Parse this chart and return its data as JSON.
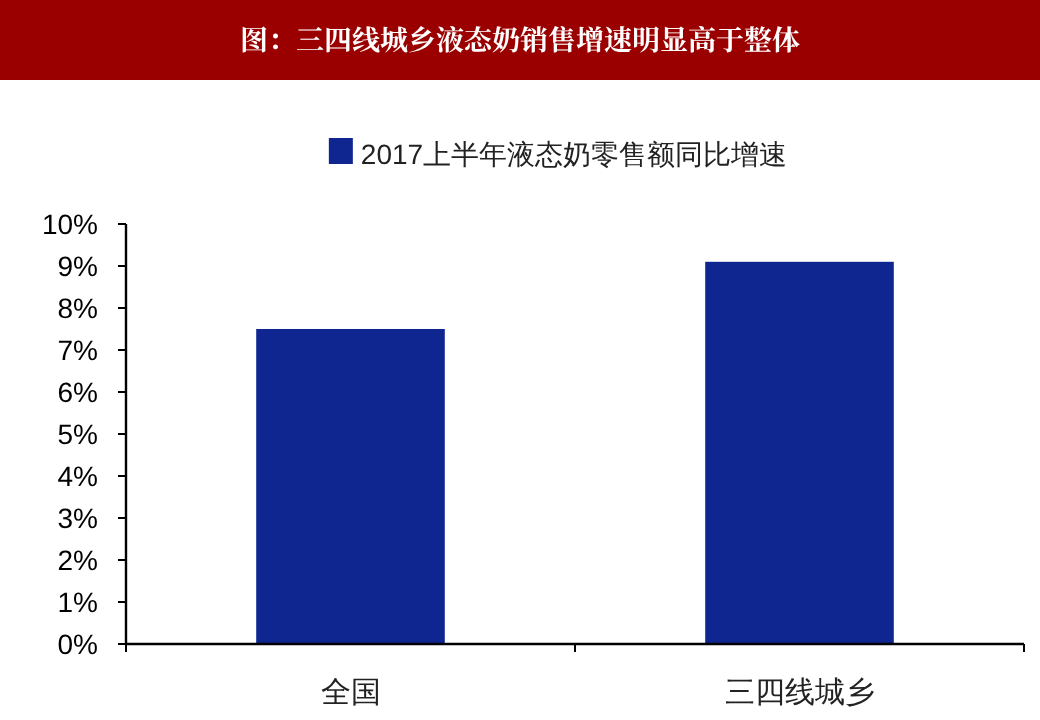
{
  "chart_data": {
    "type": "bar",
    "title": "图：三四线城乡液态奶销售增速明显高于整体",
    "categories": [
      "全国",
      "三四线城乡"
    ],
    "series": [
      {
        "name": "2017上半年液态奶零售额同比增速",
        "color": "#0f2590",
        "values": [
          7.5,
          9.1
        ]
      }
    ],
    "ylim": [
      0,
      10
    ],
    "yticks": [
      {
        "value": 0,
        "label": "0%"
      },
      {
        "value": 1,
        "label": "1%"
      },
      {
        "value": 2,
        "label": "2%"
      },
      {
        "value": 3,
        "label": "3%"
      },
      {
        "value": 4,
        "label": "4%"
      },
      {
        "value": 5,
        "label": "5%"
      },
      {
        "value": 6,
        "label": "6%"
      },
      {
        "value": 7,
        "label": "7%"
      },
      {
        "value": 8,
        "label": "8%"
      },
      {
        "value": 9,
        "label": "9%"
      },
      {
        "value": 10,
        "label": "10%"
      }
    ],
    "grid": false,
    "legend": "top"
  }
}
